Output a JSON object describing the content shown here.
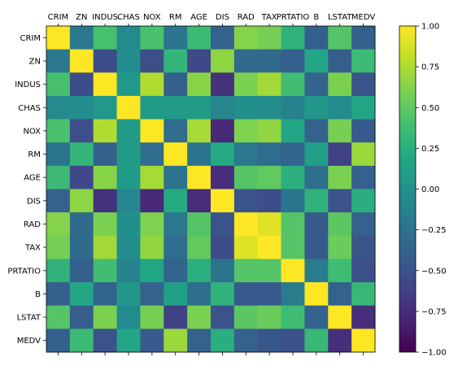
{
  "chart_data": {
    "type": "heatmap",
    "title": "",
    "labels": [
      "CRIM",
      "ZN",
      "INDUS",
      "CHAS",
      "NOX",
      "RM",
      "AGE",
      "DIS",
      "RAD",
      "TAX",
      "PRTATIO",
      "B",
      "LSTAT",
      "MEDV"
    ],
    "matrix": [
      [
        1.0,
        -0.2,
        0.41,
        -0.06,
        0.42,
        -0.22,
        0.35,
        -0.38,
        0.63,
        0.58,
        0.29,
        -0.39,
        0.46,
        -0.39
      ],
      [
        -0.2,
        1.0,
        -0.53,
        -0.04,
        -0.52,
        0.31,
        -0.57,
        0.66,
        -0.31,
        -0.31,
        -0.39,
        0.18,
        -0.41,
        0.36
      ],
      [
        0.41,
        -0.53,
        1.0,
        0.06,
        0.76,
        -0.39,
        0.64,
        -0.71,
        0.6,
        0.72,
        0.38,
        -0.36,
        0.6,
        -0.48
      ],
      [
        -0.06,
        -0.04,
        0.06,
        1.0,
        0.09,
        0.09,
        0.09,
        -0.1,
        -0.01,
        -0.04,
        -0.12,
        0.05,
        -0.05,
        0.18
      ],
      [
        0.42,
        -0.52,
        0.76,
        0.09,
        1.0,
        -0.3,
        0.73,
        -0.77,
        0.61,
        0.67,
        0.19,
        -0.38,
        0.59,
        -0.43
      ],
      [
        -0.22,
        0.31,
        -0.39,
        0.09,
        -0.3,
        1.0,
        -0.24,
        0.21,
        -0.21,
        -0.29,
        -0.36,
        0.13,
        -0.61,
        0.7
      ],
      [
        0.35,
        -0.57,
        0.64,
        0.09,
        0.73,
        -0.24,
        1.0,
        -0.75,
        0.46,
        0.51,
        0.26,
        -0.27,
        0.6,
        -0.38
      ],
      [
        -0.38,
        0.66,
        -0.71,
        -0.1,
        -0.77,
        0.21,
        -0.75,
        1.0,
        -0.49,
        -0.53,
        -0.23,
        0.29,
        -0.5,
        0.25
      ],
      [
        0.63,
        -0.31,
        0.6,
        -0.01,
        0.61,
        -0.21,
        0.46,
        -0.49,
        1.0,
        0.91,
        0.46,
        -0.44,
        0.49,
        -0.38
      ],
      [
        0.58,
        -0.31,
        0.72,
        -0.04,
        0.67,
        -0.29,
        0.51,
        -0.53,
        0.91,
        1.0,
        0.46,
        -0.44,
        0.54,
        -0.47
      ],
      [
        0.29,
        -0.39,
        0.38,
        -0.12,
        0.19,
        -0.36,
        0.26,
        -0.23,
        0.46,
        0.46,
        1.0,
        -0.18,
        0.37,
        -0.51
      ],
      [
        -0.39,
        0.18,
        -0.36,
        0.05,
        -0.38,
        0.13,
        -0.27,
        0.29,
        -0.44,
        -0.44,
        -0.18,
        1.0,
        -0.37,
        0.33
      ],
      [
        0.46,
        -0.41,
        0.6,
        -0.05,
        0.59,
        -0.61,
        0.6,
        -0.5,
        0.49,
        0.54,
        0.37,
        -0.37,
        1.0,
        -0.74
      ],
      [
        -0.39,
        0.36,
        -0.48,
        0.18,
        -0.43,
        0.7,
        -0.38,
        0.25,
        -0.38,
        -0.47,
        -0.51,
        0.33,
        -0.74,
        1.0
      ]
    ],
    "colormap": "viridis",
    "vmin": -1.0,
    "vmax": 1.0,
    "colorbar_ticks": [
      "1.00",
      "0.75",
      "0.50",
      "0.25",
      "0.00",
      "−0.25",
      "−0.50",
      "−0.75",
      "−1.00"
    ],
    "colorbar_values": [
      1.0,
      0.75,
      0.5,
      0.25,
      0.0,
      -0.25,
      -0.5,
      -0.75,
      -1.0
    ]
  }
}
